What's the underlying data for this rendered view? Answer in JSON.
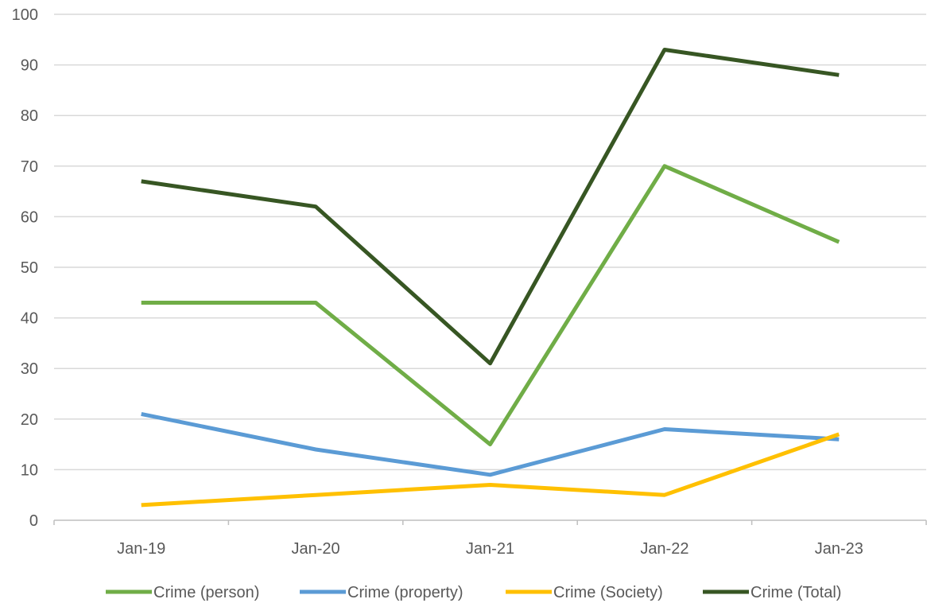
{
  "chart_data": {
    "type": "line",
    "categories": [
      "Jan-19",
      "Jan-20",
      "Jan-21",
      "Jan-22",
      "Jan-23"
    ],
    "ylim": [
      0,
      100
    ],
    "yticks": [
      0,
      10,
      20,
      30,
      40,
      50,
      60,
      70,
      80,
      90,
      100
    ],
    "grid": true,
    "legend_position": "bottom",
    "series": [
      {
        "name": "Crime (person)",
        "color": "#70AD47",
        "values": [
          43,
          43,
          15,
          70,
          55
        ]
      },
      {
        "name": "Crime (property)",
        "color": "#5B9BD5",
        "values": [
          21,
          14,
          9,
          18,
          16
        ]
      },
      {
        "name": "Crime (Society)",
        "color": "#FFC000",
        "values": [
          3,
          5,
          7,
          5,
          17
        ]
      },
      {
        "name": "Crime (Total)",
        "color": "#375623",
        "values": [
          67,
          62,
          31,
          93,
          88
        ]
      }
    ]
  }
}
